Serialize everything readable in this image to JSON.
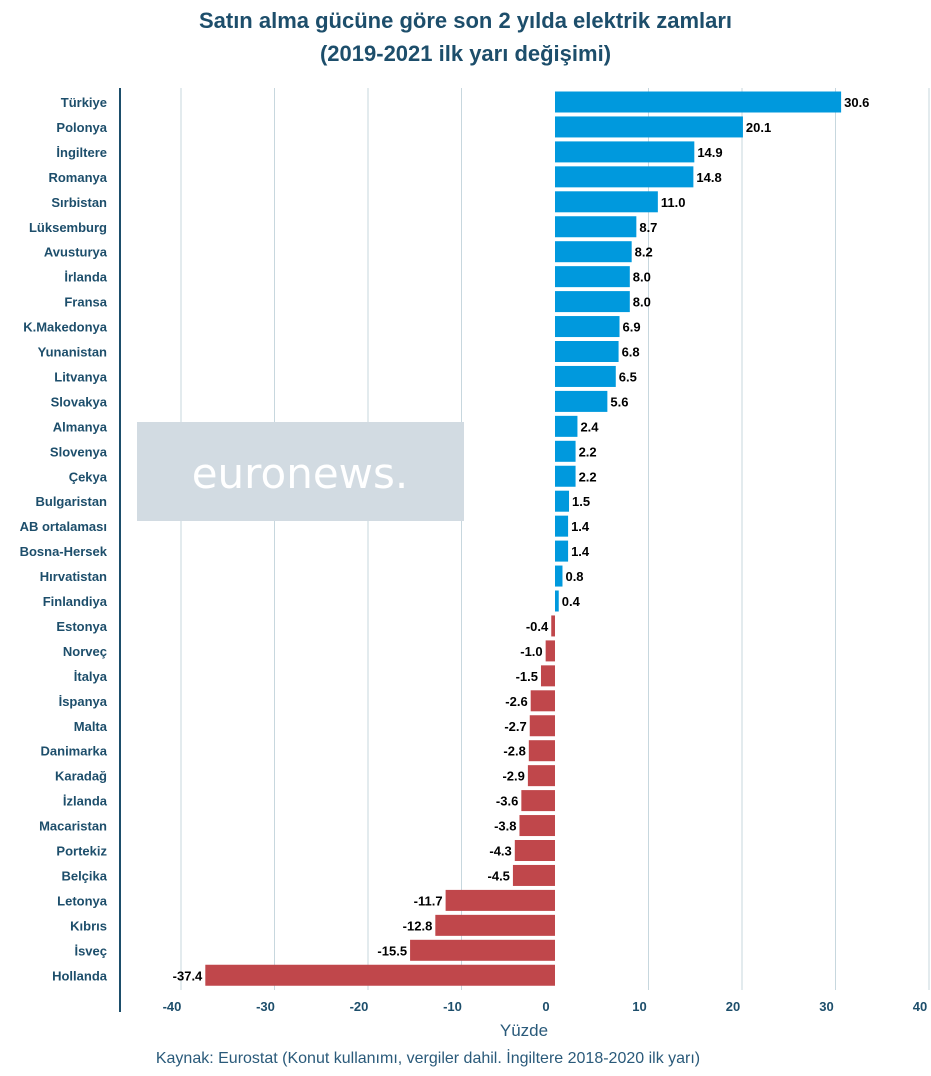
{
  "chart_data": {
    "type": "bar",
    "orientation": "horizontal",
    "title": "Satın alma gücüne göre son 2 yılda elektrik zamları",
    "subtitle": "(2019-2021 ilk yarı değişimi)",
    "xlabel": "Yüzde",
    "ylabel": "",
    "xlim": [
      -45,
      40
    ],
    "xticks": [
      "-40",
      "-30",
      "-20",
      "-10",
      "0",
      "10",
      "20",
      "30",
      "40"
    ],
    "grid": true,
    "legend": "none",
    "source": "Kaynak: Eurostat (Konut kullanımı, vergiler dahil. İngiltere 2018-2020 ilk yarı)",
    "watermark": "euronews.",
    "colors": {
      "positive": "#0099dd",
      "negative": "#c0474b",
      "axis": "#1d4e6b"
    },
    "categories": [
      "Türkiye",
      "Polonya",
      "İngiltere",
      "Romanya",
      "Sırbistan",
      "Lüksemburg",
      "Avusturya",
      "İrlanda",
      "Fransa",
      "K.Makedonya",
      "Yunanistan",
      "Litvanya",
      "Slovakya",
      "Almanya",
      "Slovenya",
      "Çekya",
      "Bulgaristan",
      "AB ortalaması",
      "Bosna-Hersek",
      "Hırvatistan",
      "Finlandiya",
      "Estonya",
      "Norveç",
      "İtalya",
      "İspanya",
      "Malta",
      "Danimarka",
      "Karadağ",
      "İzlanda",
      "Macaristan",
      "Portekiz",
      "Belçika",
      "Letonya",
      "Kıbrıs",
      "İsveç",
      "Hollanda"
    ],
    "values": [
      30.6,
      20.1,
      14.9,
      14.8,
      11.0,
      8.7,
      8.2,
      8.0,
      8.0,
      6.9,
      6.8,
      6.5,
      5.6,
      2.4,
      2.2,
      2.2,
      1.5,
      1.4,
      1.4,
      0.8,
      0.4,
      -0.4,
      -1.0,
      -1.5,
      -2.6,
      -2.7,
      -2.8,
      -2.9,
      -3.6,
      -3.8,
      -4.3,
      -4.5,
      -11.7,
      -12.8,
      -15.5,
      -37.4
    ],
    "value_labels": [
      "30.6",
      "20.1",
      "14.9",
      "14.8",
      "11.0",
      "8.7",
      "8.2",
      "8.0",
      "8.0",
      "6.9",
      "6.8",
      "6.5",
      "5.6",
      "2.4",
      "2.2",
      "2.2",
      "1.5",
      "1.4",
      "1.4",
      "0.8",
      "0.4",
      "-0.4",
      "-1.0",
      "-1.5",
      "-2.6",
      "-2.7",
      "-2.8",
      "-2.9",
      "-3.6",
      "-3.8",
      "-4.3",
      "-4.5",
      "-11.7",
      "-12.8",
      "-15.5",
      "-37.4"
    ]
  }
}
